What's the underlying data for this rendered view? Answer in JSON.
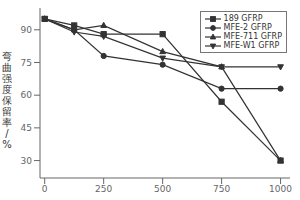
{
  "chart_data": {
    "type": "line",
    "x": [
      0,
      125,
      250,
      500,
      750,
      1000
    ],
    "series": [
      {
        "name": "189 GFRP",
        "color": "#333333",
        "marker": "square",
        "values": [
          95,
          92,
          88,
          88,
          57,
          30
        ]
      },
      {
        "name": "MFE-2 GFRP",
        "color": "#333333",
        "marker": "circle",
        "values": [
          95,
          90,
          78,
          74,
          63,
          63
        ]
      },
      {
        "name": "MFE-711 GFRP",
        "color": "#333333",
        "marker": "triangle-up",
        "values": [
          95,
          90,
          92,
          80,
          73,
          30
        ]
      },
      {
        "name": "MFE-W1 GFRP",
        "color": "#333333",
        "marker": "triangle-down",
        "values": [
          95,
          89,
          87,
          77,
          73,
          73
        ]
      }
    ],
    "ylabel": "弯曲强度保留率/%",
    "xlim": [
      -20,
      1040
    ],
    "ylim": [
      22,
      100
    ],
    "xticks": [
      0,
      250,
      500,
      750,
      1000
    ],
    "yticks": [
      30,
      45,
      60,
      75,
      90
    ],
    "legend": "upper right",
    "grid": false
  }
}
